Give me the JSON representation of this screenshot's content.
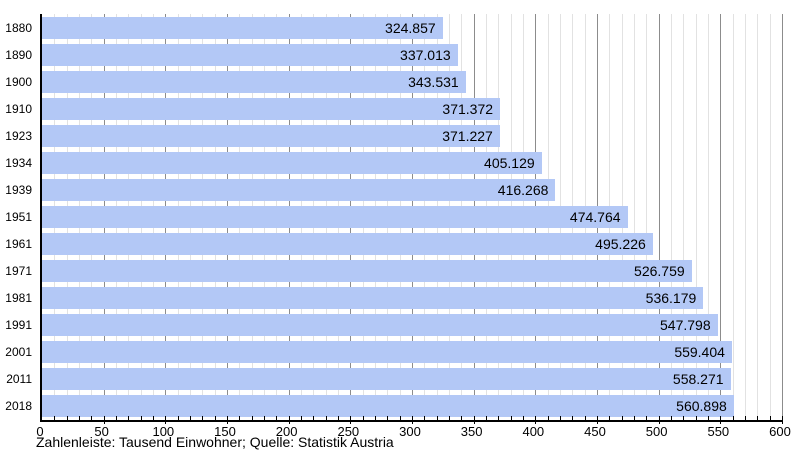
{
  "chart_data": {
    "type": "bar",
    "orientation": "horizontal",
    "title": "",
    "categories": [
      "1880",
      "1890",
      "1900",
      "1910",
      "1923",
      "1934",
      "1939",
      "1951",
      "1961",
      "1971",
      "1981",
      "1991",
      "2001",
      "2011",
      "2018"
    ],
    "values": [
      324.857,
      337.013,
      343.531,
      371.372,
      371.227,
      405.129,
      416.268,
      474.764,
      495.226,
      526.759,
      536.179,
      547.798,
      559.404,
      558.271,
      560.898
    ],
    "value_labels": [
      "324.857",
      "337.013",
      "343.531",
      "371.372",
      "371.227",
      "405.129",
      "416.268",
      "474.764",
      "495.226",
      "526.759",
      "536.179",
      "547.798",
      "559.404",
      "558.271",
      "560.898"
    ],
    "xlabel": "",
    "ylabel": "",
    "xlim": [
      0,
      600
    ],
    "xtick_labels": [
      "0",
      "50",
      "100",
      "150",
      "200",
      "250",
      "300",
      "350",
      "400",
      "450",
      "500",
      "550",
      "600"
    ],
    "major_tick_step": 50,
    "minor_tick_step": 10,
    "grid": "vertical",
    "legend": "none",
    "caption": "Zahlenleiste: Tausend Einwohner; Quelle: Statistik Austria",
    "colors": {
      "bar_fill": "#b3c8f6",
      "grid_minor": "#e2e2e2",
      "grid_major": "#8c8c8c",
      "axis": "#000000",
      "text": "#000000",
      "background": "#ffffff"
    }
  }
}
